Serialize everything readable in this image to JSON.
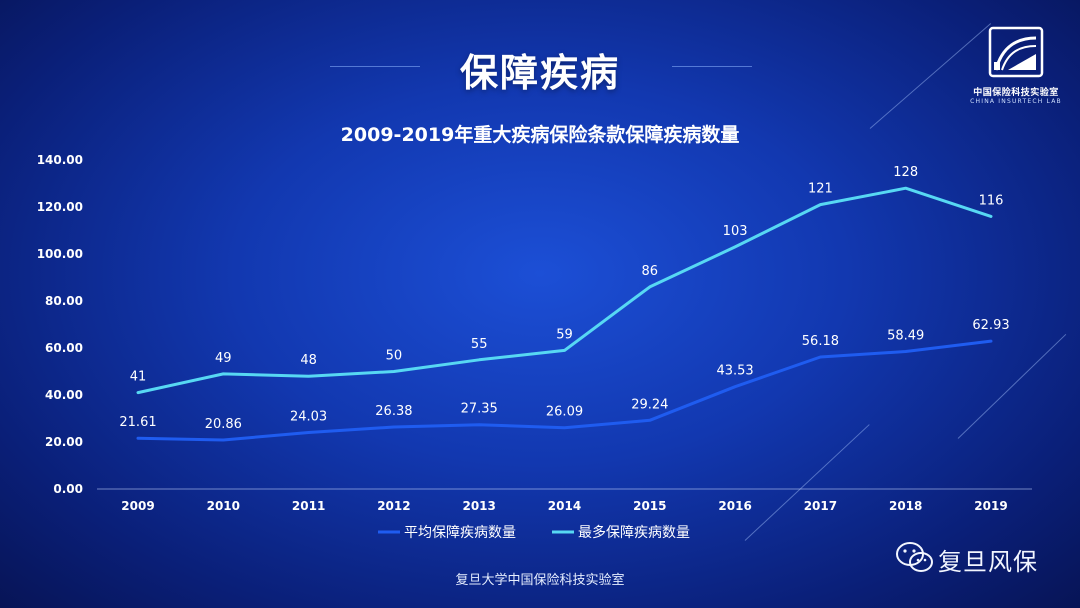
{
  "page": {
    "title": "保障疾病",
    "footer": "复旦大学中国保险科技实验室"
  },
  "logo": {
    "name_cn": "中国保险科技实验室",
    "name_en": "CHINA INSURTECH LAB"
  },
  "watermark": {
    "icon": "wechat-icon",
    "text": "复旦风保"
  },
  "colors": {
    "avg_series": "#1f5cf0",
    "max_series": "#57d8f3"
  },
  "chart_data": {
    "type": "line",
    "title": "2009-2019年重大疾病保险条款保障疾病数量",
    "xlabel": "",
    "ylabel": "",
    "ylim": [
      0,
      140
    ],
    "yticks": [
      "0.00",
      "20.00",
      "40.00",
      "60.00",
      "80.00",
      "100.00",
      "120.00",
      "140.00"
    ],
    "categories": [
      "2009",
      "2010",
      "2011",
      "2012",
      "2013",
      "2014",
      "2015",
      "2016",
      "2017",
      "2018",
      "2019"
    ],
    "grid": false,
    "legend_position": "bottom",
    "series": [
      {
        "name": "平均保障疾病数量",
        "values": [
          21.61,
          20.86,
          24.03,
          26.38,
          27.35,
          26.09,
          29.24,
          43.53,
          56.18,
          58.49,
          62.93
        ],
        "labels": [
          "21.61",
          "20.86",
          "24.03",
          "26.38",
          "27.35",
          "26.09",
          "29.24",
          "43.53",
          "56.18",
          "58.49",
          "62.93"
        ]
      },
      {
        "name": "最多保障疾病数量",
        "values": [
          41,
          49,
          48,
          50,
          55,
          59,
          86,
          103,
          121,
          128,
          116
        ],
        "labels": [
          "41",
          "49",
          "48",
          "50",
          "55",
          "59",
          "86",
          "103",
          "121",
          "128",
          "116"
        ]
      }
    ]
  }
}
